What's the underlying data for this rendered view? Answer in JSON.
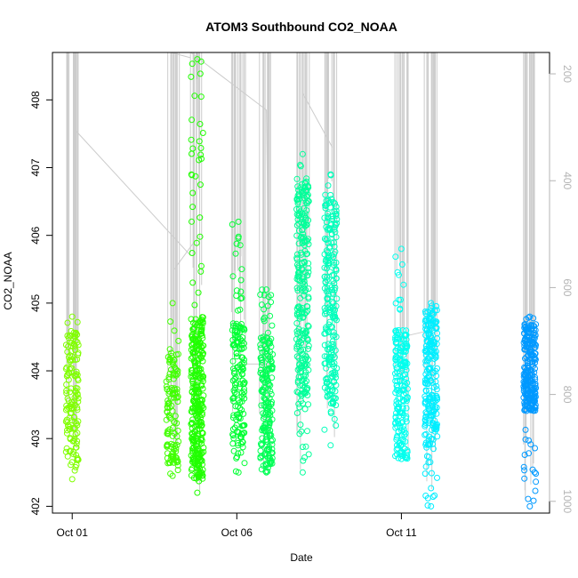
{
  "chart_data": {
    "type": "scatter",
    "title": "ATOM3 Southbound CO2_NOAA",
    "xlabel": "Date",
    "ylabel": "CO2_NOAA",
    "x_ticks": [
      "Oct 01",
      "Oct 06",
      "Oct 11"
    ],
    "x_tick_days": [
      1,
      6,
      11
    ],
    "xlim_days": [
      0.4,
      15.5
    ],
    "ylim": [
      401.9,
      408.7
    ],
    "y_ticks": [
      402,
      403,
      404,
      405,
      406,
      407,
      408
    ],
    "y2_ticks": [
      200,
      400,
      600,
      800,
      1000
    ],
    "y2lim_reversed": [
      1022,
      160
    ],
    "y2_color": "#b4b4b4",
    "grid": false,
    "legend": "none",
    "clusters": [
      {
        "day": 1.0,
        "ymin": 402.4,
        "ymax": 404.8,
        "dense_min": 402.6,
        "dense_max": 404.6,
        "color": "#80ff00",
        "n": 140
      },
      {
        "day": 4.05,
        "ymin": 402.45,
        "ymax": 405.0,
        "dense_min": 402.6,
        "dense_max": 404.3,
        "color": "#40ff00",
        "n": 120
      },
      {
        "day": 4.8,
        "ymin": 402.2,
        "ymax": 408.6,
        "dense_min": 402.4,
        "dense_max": 404.8,
        "color": "#20ff00",
        "n": 340
      },
      {
        "day": 6.05,
        "ymin": 402.5,
        "ymax": 406.2,
        "dense_min": 402.9,
        "dense_max": 404.7,
        "color": "#00ff33",
        "n": 160
      },
      {
        "day": 6.9,
        "ymin": 402.5,
        "ymax": 405.2,
        "dense_min": 402.6,
        "dense_max": 404.5,
        "color": "#00ff55",
        "n": 200
      },
      {
        "day": 8.0,
        "ymin": 402.5,
        "ymax": 407.2,
        "dense_min": 403.5,
        "dense_max": 406.8,
        "color": "#00ff99",
        "n": 260
      },
      {
        "day": 8.85,
        "ymin": 402.9,
        "ymax": 406.9,
        "dense_min": 403.5,
        "dense_max": 406.6,
        "color": "#00ffbb",
        "n": 230
      },
      {
        "day": 11.0,
        "ymin": 402.7,
        "ymax": 405.8,
        "dense_min": 402.7,
        "dense_max": 404.6,
        "color": "#00ffee",
        "n": 200
      },
      {
        "day": 11.9,
        "ymin": 402.0,
        "ymax": 405.0,
        "dense_min": 402.9,
        "dense_max": 404.9,
        "color": "#00eeff",
        "n": 230
      },
      {
        "day": 14.9,
        "ymin": 402.0,
        "ymax": 404.8,
        "dense_min": 403.4,
        "dense_max": 404.7,
        "color": "#0099ff",
        "n": 260
      }
    ]
  }
}
